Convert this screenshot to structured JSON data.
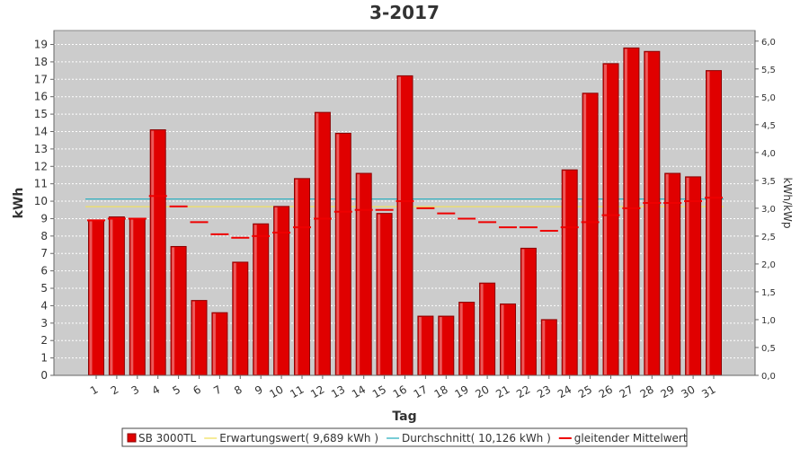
{
  "chart_data": {
    "type": "bar",
    "title": "3-2017",
    "xlabel": "Tag",
    "ylabel": "kWh",
    "y2label": "kWh/kWp",
    "ylim": [
      0,
      19.8
    ],
    "y2lim": [
      0,
      6.19
    ],
    "yticks": [
      "0",
      "1",
      "2",
      "3",
      "4",
      "5",
      "6",
      "7",
      "8",
      "9",
      "10",
      "11",
      "12",
      "13",
      "14",
      "15",
      "16",
      "17",
      "18",
      "19"
    ],
    "y2ticks": [
      "0,0",
      "0,5",
      "1,0",
      "1,5",
      "2,0",
      "2,5",
      "3,0",
      "3,5",
      "4,0",
      "4,5",
      "5,0",
      "5,5",
      "6,0"
    ],
    "y2tick_values": [
      0,
      0.5,
      1.0,
      1.5,
      2.0,
      2.5,
      3.0,
      3.5,
      4.0,
      4.5,
      5.0,
      5.5,
      6.0
    ],
    "categories": [
      "1",
      "2",
      "3",
      "4",
      "5",
      "6",
      "7",
      "8",
      "9",
      "10",
      "11",
      "12",
      "13",
      "14",
      "15",
      "16",
      "17",
      "18",
      "19",
      "20",
      "21",
      "22",
      "23",
      "24",
      "25",
      "26",
      "27",
      "28",
      "29",
      "30",
      "31"
    ],
    "series": [
      {
        "name": "SB 3000TL",
        "type": "bar",
        "color": "#e00000",
        "values": [
          8.9,
          9.1,
          9.0,
          14.1,
          7.4,
          4.3,
          3.6,
          6.5,
          8.7,
          9.7,
          11.3,
          15.1,
          13.9,
          11.6,
          9.3,
          17.2,
          3.4,
          3.4,
          4.2,
          5.3,
          4.1,
          7.3,
          3.2,
          11.8,
          16.2,
          17.9,
          18.8,
          18.6,
          11.6,
          11.4,
          17.5
        ]
      },
      {
        "name": "Erwartungswert( 9,689 kWh )",
        "type": "hline",
        "color": "#f0e060",
        "value": 9.689
      },
      {
        "name": "Durchschnitt( 10,126 kWh )",
        "type": "hline",
        "color": "#30b0c0",
        "value": 10.126
      },
      {
        "name": "gleitender Mittelwert",
        "type": "step",
        "color": "#ee0000",
        "values": [
          8.9,
          9.0,
          9.0,
          10.3,
          9.7,
          8.8,
          8.1,
          7.9,
          8.0,
          8.2,
          8.5,
          9.0,
          9.4,
          9.5,
          9.5,
          10.0,
          9.6,
          9.3,
          9.0,
          8.8,
          8.5,
          8.5,
          8.3,
          8.5,
          8.8,
          9.2,
          9.6,
          9.9,
          9.9,
          10.0,
          10.2
        ]
      }
    ],
    "grid": true,
    "legend_position": "bottom"
  },
  "colors": {
    "plot_background": "#cccccc",
    "grid": "#ffffff",
    "bar_edge": "#8b0000",
    "text": "#333333"
  }
}
